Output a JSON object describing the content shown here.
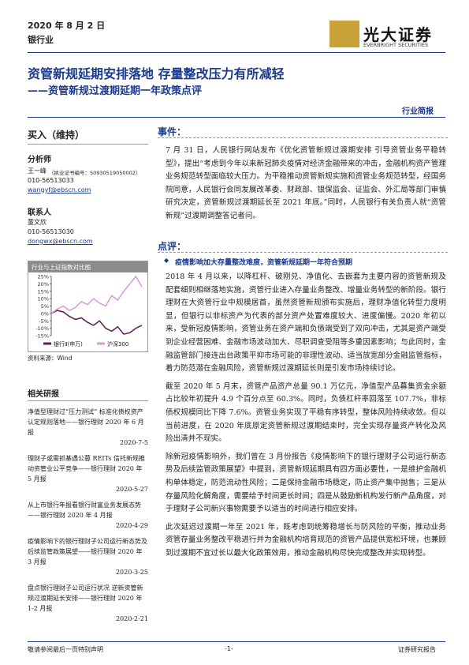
{
  "header": {
    "date": "2020 年 8 月 2 日",
    "industry": "银行业",
    "logo_cn": "光大证券",
    "logo_en": "EVERBRIGHT SECURITIES",
    "title": "资管新规延期安排落地 存量整改压力有所减轻",
    "subtitle": "——资管新规过渡期延期一年政策点评",
    "report_type": "行业简报"
  },
  "sidebar": {
    "rating": "买入（维持）",
    "analyst_heading": "分析师",
    "analyst_name": "王一峰",
    "analyst_cert": "（执业证书编号：S0930519050002）",
    "analyst_phone": "010-56513033",
    "analyst_email": "wangyf@ebscn.com",
    "contact_heading": "联系人",
    "contact_name": "董文欣",
    "contact_phone": "010-56513030",
    "contact_email": "dongwx@ebscn.com",
    "chart": {
      "title": "行业与上证指数对比图",
      "source": "资料来源：Wind",
      "series": [
        {
          "name": "银行Ⅱ(申万)",
          "color": "#5b1a5b",
          "values": [
            0,
            2,
            1,
            -2,
            -4,
            -3,
            -6,
            -8,
            -5,
            -10,
            -12,
            -9,
            -14,
            -13,
            -10,
            -8
          ]
        },
        {
          "name": "沪深300",
          "color": "#d79ad7",
          "values": [
            0,
            3,
            5,
            2,
            4,
            8,
            6,
            10,
            7,
            5,
            12,
            9,
            15,
            20,
            25,
            18
          ]
        }
      ],
      "ylim": [
        -15,
        25
      ],
      "yticks": [
        {
          "value": -15,
          "label": "-15%"
        },
        {
          "value": -10,
          "label": "-10%"
        },
        {
          "value": -5,
          "label": "-5%"
        },
        {
          "value": 0,
          "label": "0%"
        },
        {
          "value": 5,
          "label": "5%"
        },
        {
          "value": 10,
          "label": "10%"
        },
        {
          "value": 15,
          "label": "15%"
        },
        {
          "value": 20,
          "label": "20%"
        },
        {
          "value": 25,
          "label": "25%"
        }
      ]
    },
    "related_heading": "相关研报",
    "related": [
      {
        "title": "净值型理财过“压力测试” 标准化债权资产认定规则落地——银行理财 2020 年 6 月报",
        "date": "2020-7-5"
      },
      {
        "title": "理财子或需抓基遇公募 REITs 信托新规推动资管业公平竞争——银行理财 2020 年 5 月报",
        "date": "2020-5-27"
      },
      {
        "title": "从上市银行年报看银行财富业务发展态势——银行理财 2020 年 4 月报",
        "date": "2020-4-29"
      },
      {
        "title": "疫情影响下的银行理财子公司运行新态势及后续监管政策展望——银行理财 2020 年 3 月报",
        "date": "2020-3-25"
      },
      {
        "title": "盘点银行理财子公司运行状况 逆新资管新规过渡期延长安排——银行理财 2020 年 1-2 月报",
        "date": "2020-2-21"
      }
    ]
  },
  "main": {
    "event_heading": "事件：",
    "event_text": "7 月 31 日，人民银行网站发布《优化资管新规过渡期安排 引导资管业务平稳转型》，提出“考虑到今年以来新冠肺炎疫情对经济金融带来的冲击，金融机构资产管理业务规范转型面临较大压力。为平稳推动资管新规实施和资管业务规范转型，经国务院同意，人民银行会同发展改革委、财政部、银保监会、证监会、外汇局等部门审慎研究决定，资管新规过渡期延长至 2021 年底。”同时，人民银行有关负责人就“资管新规”过渡期调整答记者问。",
    "comment_heading": "点评：",
    "bullet": "疫情影响加大存量整改难度，资管新规延期一年符合预期",
    "paragraphs": [
      "2018 年 4 月以来，以降杠杆、破刚兑、净值化、去嵌套为主要内容的资管新规及配套细则相继落地实施，资管行业进入存量业务整改、增量业务转型的新阶段。银行理财在大资管行业中规模居首，虽然资管新规颁布实施后，理财净值化转型力度明显，但银行以非标资产为代表的部分资产处置难度较大、进度偏慢。2020 年初以来，受新冠疫情影响，资管业务在资产端和负债端受到了双向冲击，尤其是资产端受到企业经营困难、金融市场波动加大、尽职调查受阻等多重因素影响；与此同时，金融监管部门接连出台政策平抑市场可能的非理性波动、适当放宽部分金融监管指标，着力防范潜在金融风险，资管新规过渡期延长则是引发市场持续讨论。",
      "截至 2020 年 5 月末，资管产品资产总量 90.1 万亿元，净值型产品募集资金余额占比较年初提升 4.9 个百分点至 60.3%。同时，负债杠杆率回落至 107.7%，非标债权规模同比下降 7.6%。资管业务实现了平稳有序转型，整体风险持续收敛。但以当前进度，在 2020 年底原定资管新规过渡期结束时，完全实现存量资产转化及风险出清并不现实。",
      "除新冠疫情影响外，我们曾在 3 月份报告《疫情影响下的银行理财子公司运行新态势及后续监管政策展望》中提到，资管新规延期具有四方面必要性，一是维护金融机构单体稳定，防范流动性风险；二是保持金融市场稳定，防止资产集中抛售；三是从存量风险化解角度，需要给予时间更长时间；四是从鼓励新机构发行新产品角度，对于理财子公司新兴事物需要予以适当的时间进行相应安排。",
      "此次延迟过渡期一年至 2021 年，既考虑到统筹稳增长与防风险的平衡，推动业务资管存量业务整改平稳进行并为金融机构培育规范的资管产品提供宽松环境，也兼顾到过渡期不宜过长以最大化政策效用，推动金融机构尽快完成整改并实现转型。"
    ]
  },
  "footer": {
    "left": "敬请参阅最后一页特别声明",
    "page": "-1-",
    "right": "证券研究报告"
  }
}
